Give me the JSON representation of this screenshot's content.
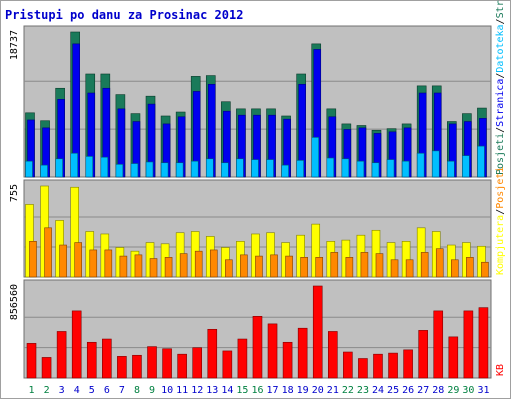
{
  "chart_data": {
    "type": "bar",
    "title": "Pristupi po danu za Prosinac 2012",
    "categories": [
      "1",
      "2",
      "3",
      "4",
      "5",
      "6",
      "7",
      "8",
      "9",
      "10",
      "11",
      "12",
      "13",
      "14",
      "15",
      "16",
      "17",
      "18",
      "19",
      "20",
      "21",
      "22",
      "23",
      "24",
      "25",
      "26",
      "27",
      "28",
      "29",
      "30",
      "31"
    ],
    "weekend_days": [
      "1",
      "2",
      "8",
      "9",
      "15",
      "16",
      "22",
      "23",
      "29",
      "30"
    ],
    "colors": {
      "background": "#c0c0c0",
      "title": "#0000cc",
      "weekday_label": "#0000cc",
      "weekend_label": "#008040",
      "posjeti": "#1a7a5a",
      "stranica": "#0000ee",
      "datoteka": "#00bfff",
      "kompjutera": "#ffff00",
      "posjeta_panel2": "#ff8800",
      "kb": "#ff0000"
    },
    "panels": [
      {
        "name": "top",
        "max_label": "18737",
        "legend_labels": [
          "Posjeti",
          "Stranica",
          "Datoteka",
          "Stranica"
        ],
        "series": [
          {
            "key": "posjeti",
            "values": [
              8100,
              7100,
              11200,
              18300,
              13000,
              13000,
              10400,
              8000,
              10200,
              7700,
              8200,
              12700,
              12800,
              9500,
              8600,
              8600,
              8600,
              7700,
              13000,
              16800,
              8600,
              6700,
              6500,
              5900,
              6100,
              6700,
              11500,
              11500,
              7000,
              8000,
              8700
            ]
          },
          {
            "key": "stranica",
            "values": [
              7200,
              6200,
              9800,
              16800,
              10600,
              11200,
              8600,
              7000,
              9200,
              6700,
              7600,
              10800,
              11700,
              8300,
              7800,
              7800,
              7800,
              7300,
              11700,
              16100,
              7600,
              6000,
              6200,
              5500,
              5700,
              6200,
              10600,
              10600,
              6700,
              7000,
              7400
            ]
          },
          {
            "key": "datoteka",
            "values": [
              2000,
              1500,
              2300,
              3000,
              2600,
              2500,
              1600,
              1700,
              1900,
              1800,
              1800,
              2000,
              2300,
              1800,
              2300,
              2200,
              2200,
              1500,
              2100,
              5000,
              2400,
              2300,
              2000,
              1800,
              2200,
              2000,
              3000,
              3300,
              2000,
              2700,
              3900
            ]
          }
        ]
      },
      {
        "name": "middle",
        "max_label": "755",
        "legend_labels": [
          "Kompjutera",
          "Posjeti"
        ],
        "series": [
          {
            "key": "kompjutera",
            "values": [
              590,
              740,
              460,
              730,
              370,
              350,
              240,
              210,
              280,
              270,
              360,
              370,
              330,
              240,
              290,
              350,
              360,
              280,
              340,
              430,
              290,
              300,
              340,
              380,
              280,
              290,
              400,
              370,
              260,
              280,
              250
            ]
          },
          {
            "key": "posjeta",
            "values": [
              290,
              400,
              260,
              280,
              220,
              220,
              170,
              180,
              150,
              160,
              190,
              210,
              220,
              140,
              180,
              170,
              180,
              170,
              160,
              160,
              200,
              160,
              200,
              190,
              140,
              140,
              200,
              230,
              140,
              160,
              120
            ]
          }
        ]
      },
      {
        "name": "bottom",
        "max_label": "856560",
        "legend_labels": [
          "KB"
        ],
        "series": [
          {
            "key": "kb",
            "values": [
              320000,
              190000,
              430000,
              620000,
              330000,
              360000,
              200000,
              210000,
              290000,
              270000,
              220000,
              280000,
              450000,
              250000,
              360000,
              570000,
              500000,
              330000,
              460000,
              850000,
              430000,
              240000,
              180000,
              220000,
              230000,
              260000,
              440000,
              620000,
              380000,
              620000,
              650000
            ]
          }
        ]
      }
    ]
  }
}
